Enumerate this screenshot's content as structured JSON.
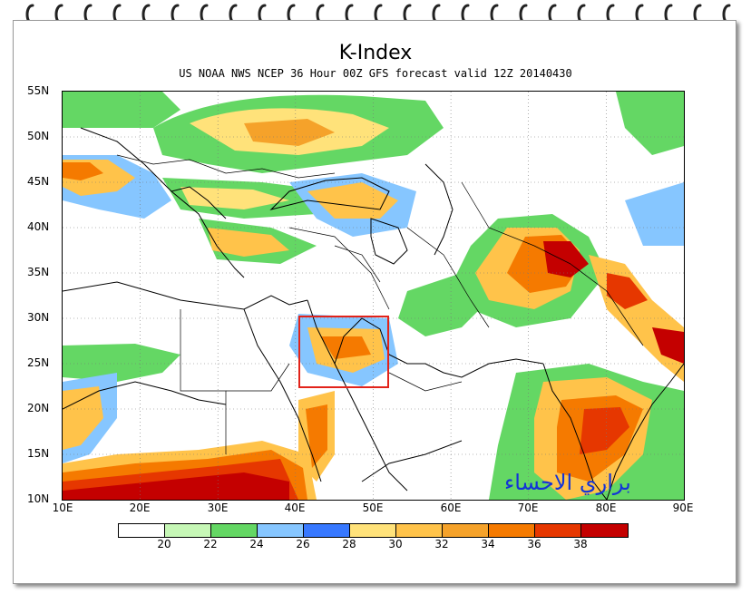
{
  "title": "K-Index",
  "subtitle": "US NOAA NWS NCEP 36 Hour 00Z GFS forecast valid 12Z 20140430",
  "lat_labels": [
    "55N",
    "50N",
    "45N",
    "40N",
    "35N",
    "30N",
    "25N",
    "20N",
    "15N",
    "10N"
  ],
  "lon_labels": [
    "10E",
    "20E",
    "30E",
    "40E",
    "50E",
    "60E",
    "70E",
    "80E",
    "90E"
  ],
  "legend": {
    "labels": [
      "20",
      "22",
      "24",
      "26",
      "28",
      "30",
      "32",
      "34",
      "36",
      "38"
    ],
    "colors": [
      "#ffffff",
      "#c6f7b6",
      "#64d764",
      "#86c6ff",
      "#3778ff",
      "#ffe27a",
      "#ffc34a",
      "#f5a22a",
      "#f57a00",
      "#e63700",
      "#c40000"
    ]
  },
  "watermark": "براري الاحساء",
  "highlight": {
    "label": "region-box"
  }
}
